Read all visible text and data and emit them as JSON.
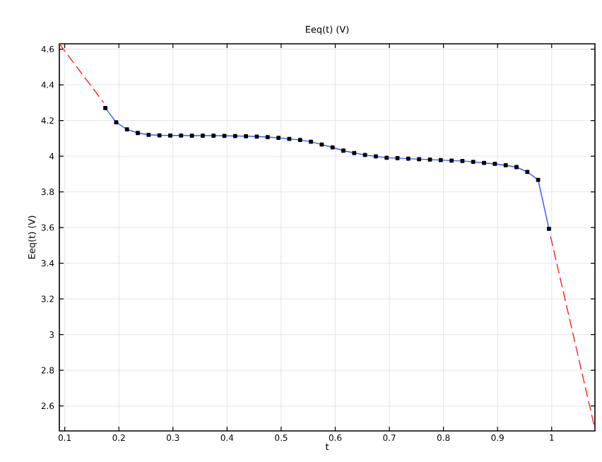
{
  "chart_data": {
    "type": "line",
    "title": "Eeq(t) (V)",
    "xlabel": "t",
    "ylabel": "Eeq(t) (V)",
    "xlim": [
      0.09,
      1.08
    ],
    "ylim": [
      2.46,
      4.63
    ],
    "xticks": [
      0.1,
      0.2,
      0.3,
      0.4,
      0.5,
      0.6,
      0.7,
      0.8,
      0.9,
      1
    ],
    "yticks": [
      2.6,
      2.8,
      3,
      3.2,
      3.4,
      3.6,
      3.8,
      4,
      4.2,
      4.4,
      4.6
    ],
    "grid": true,
    "series": [
      {
        "color": "#ff2020",
        "line_style": "dashed",
        "marker": "none",
        "x": [
          0.09,
          0.172
        ],
        "values": [
          4.63,
          4.3
        ]
      },
      {
        "color": "#ff2020",
        "line_style": "dashed",
        "marker": "none",
        "x": [
          0.998,
          1.08
        ],
        "values": [
          3.55,
          2.47
        ]
      },
      {
        "color": "#3355ff",
        "line_style": "solid",
        "marker": "square",
        "x": [
          0.175,
          0.195,
          0.215,
          0.235,
          0.255,
          0.275,
          0.295,
          0.315,
          0.335,
          0.355,
          0.375,
          0.395,
          0.415,
          0.435,
          0.455,
          0.475,
          0.495,
          0.515,
          0.535,
          0.555,
          0.575,
          0.595,
          0.615,
          0.635,
          0.655,
          0.675,
          0.695,
          0.715,
          0.735,
          0.755,
          0.775,
          0.795,
          0.815,
          0.835,
          0.855,
          0.875,
          0.895,
          0.915,
          0.935,
          0.955,
          0.975,
          0.995
        ],
        "values": [
          4.27,
          4.19,
          4.15,
          4.13,
          4.12,
          4.117,
          4.116,
          4.116,
          4.115,
          4.115,
          4.115,
          4.114,
          4.113,
          4.112,
          4.11,
          4.107,
          4.103,
          4.097,
          4.091,
          4.081,
          4.065,
          4.049,
          4.031,
          4.018,
          4.007,
          3.999,
          3.991,
          3.989,
          3.986,
          3.983,
          3.981,
          3.978,
          3.975,
          3.973,
          3.968,
          3.962,
          3.957,
          3.949,
          3.939,
          3.912,
          3.867,
          3.593
        ]
      }
    ]
  }
}
